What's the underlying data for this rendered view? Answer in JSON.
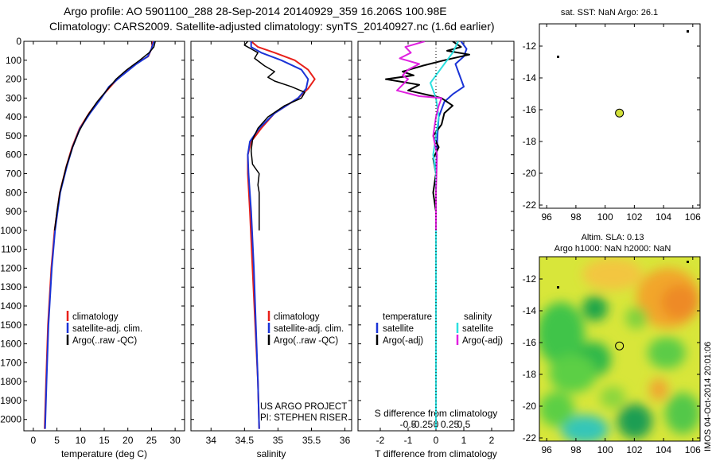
{
  "header": {
    "title_line1": "Argo profile: AO 5901100_288 28-Sep-2014 20140929_359 16.206S 100.98E",
    "title_line2": "Climatology: CARS2009. Satellite-adjusted climatology: synTS_20140927.nc (1.6d earlier)"
  },
  "colors": {
    "climatology": "#e8201a",
    "satellite": "#1a33d6",
    "argo": "#000000",
    "sal_satellite": "#2de0e0",
    "sal_argo": "#e020e0",
    "sst_bg": "#ffffff",
    "marker_fill": "#d2e03a"
  },
  "depth_axis": {
    "ticks": [
      "0",
      "100",
      "200",
      "300",
      "400",
      "500",
      "600",
      "700",
      "800",
      "900",
      "1000",
      "1100",
      "1200",
      "1300",
      "1400",
      "1500",
      "1600",
      "1700",
      "1800",
      "1900",
      "2000"
    ],
    "range": [
      0,
      2060
    ]
  },
  "chart_data": [
    {
      "type": "line",
      "panel": "temperature",
      "xlabel": "temperature (deg C)",
      "xlim": [
        -2,
        32
      ],
      "xticks": [
        "0",
        "5",
        "10",
        "15",
        "20",
        "25",
        "30"
      ],
      "ylim": [
        2060,
        0
      ],
      "legend": [
        "climatology",
        "satellite-adj. clim.",
        "Argo(..raw -QC)"
      ],
      "series": [
        {
          "name": "climatology",
          "depth": [
            0,
            40,
            80,
            120,
            180,
            240,
            300,
            380,
            460,
            560,
            660,
            800,
            1000,
            1200,
            1500,
            1800,
            2050
          ],
          "values": [
            25.3,
            25,
            24.3,
            21.5,
            18.5,
            16.3,
            14.2,
            11.8,
            9.8,
            8.2,
            7,
            5.6,
            4.5,
            3.8,
            3.1,
            2.7,
            2.4
          ]
        },
        {
          "name": "satellite-adj. clim.",
          "depth": [
            0,
            40,
            80,
            120,
            180,
            240,
            300,
            380,
            460,
            560,
            660,
            800,
            1000,
            1200,
            1500,
            1800,
            2050
          ],
          "values": [
            25.5,
            25,
            24.2,
            21.8,
            18.8,
            16,
            14.4,
            12,
            9.9,
            8.3,
            7.1,
            5.7,
            4.6,
            3.9,
            3.2,
            2.8,
            2.5
          ]
        },
        {
          "name": "Argo(..raw -QC)",
          "depth": [
            0,
            30,
            60,
            100,
            150,
            200,
            260,
            320,
            400,
            480,
            560,
            660,
            800,
            900,
            1000
          ],
          "values": [
            25.8,
            25.5,
            24.5,
            22.5,
            19.8,
            17.5,
            15.5,
            13.5,
            11.3,
            9.6,
            8.3,
            7,
            5.6,
            5,
            4.5
          ]
        }
      ]
    },
    {
      "type": "line",
      "panel": "salinity",
      "xlabel": "salinity",
      "xlim": [
        33.7,
        36.1
      ],
      "xticks": [
        "34",
        "34.5",
        "35",
        "35.5",
        "36"
      ],
      "ylim": [
        2060,
        0
      ],
      "legend": [
        "climatology",
        "satellite-adj. clim.",
        "Argo(..raw -QC)"
      ],
      "credit_line1": "US ARGO PROJECT",
      "credit_line2": "PI: STEPHEN RISER",
      "series": [
        {
          "name": "climatology",
          "depth": [
            0,
            30,
            60,
            100,
            150,
            200,
            250,
            300,
            380,
            460,
            530,
            600,
            700,
            900,
            1200,
            1500,
            1800,
            2050
          ],
          "values": [
            34.6,
            34.7,
            34.95,
            35.25,
            35.45,
            35.55,
            35.45,
            35.3,
            34.95,
            34.75,
            34.6,
            34.55,
            34.55,
            34.58,
            34.62,
            34.66,
            34.7,
            34.72
          ]
        },
        {
          "name": "satellite-adj. clim.",
          "depth": [
            0,
            30,
            60,
            100,
            150,
            200,
            250,
            300,
            380,
            460,
            530,
            600,
            700,
            900,
            1200,
            1500,
            1800,
            2050
          ],
          "values": [
            34.6,
            34.6,
            34.75,
            35.05,
            35.35,
            35.45,
            35.42,
            35.3,
            34.95,
            34.72,
            34.58,
            34.55,
            34.56,
            34.6,
            34.64,
            34.67,
            34.7,
            34.72
          ]
        },
        {
          "name": "Argo(..raw -QC)",
          "depth": [
            0,
            20,
            40,
            60,
            90,
            130,
            160,
            190,
            210,
            240,
            270,
            300,
            340,
            400,
            460,
            520,
            580,
            650,
            700,
            760,
            800,
            900,
            1000
          ],
          "values": [
            34.55,
            34.5,
            34.6,
            34.7,
            34.65,
            34.8,
            34.95,
            34.85,
            34.95,
            35.2,
            35.4,
            35.35,
            35.1,
            34.85,
            34.7,
            34.62,
            34.6,
            34.62,
            34.72,
            34.7,
            34.72,
            34.72,
            34.72
          ]
        }
      ]
    },
    {
      "type": "line",
      "panel": "differences",
      "xlabel": "T difference from climatology",
      "xlabel_top": "S difference from climatology",
      "xlim": [
        -2.8,
        2.8
      ],
      "xticks": [
        "-2",
        "-1",
        "0",
        "1",
        "2"
      ],
      "sticks": [
        "-0.5",
        "-0.25",
        "0",
        "0.25",
        "0.5"
      ],
      "ylim": [
        2060,
        0
      ],
      "legend_heads": [
        "temperature",
        "salinity"
      ],
      "legend": [
        "satellite",
        "Argo(-adj)",
        "satellite",
        "Argo(-adj)"
      ],
      "series": [
        {
          "name": "T satellite",
          "depth": [
            0,
            40,
            80,
            120,
            160,
            200,
            240,
            280,
            320,
            400,
            500,
            700,
            1000,
            1500,
            2050
          ],
          "values": [
            0.9,
            1.1,
            1.0,
            0.7,
            0.8,
            0.9,
            1.0,
            0.6,
            0.3,
            0.1,
            0.05,
            0,
            0,
            0,
            0
          ]
        },
        {
          "name": "T Argo(-adj)",
          "depth": [
            0,
            30,
            50,
            70,
            100,
            130,
            160,
            180,
            200,
            230,
            260,
            300,
            340,
            380,
            440,
            500,
            560,
            620,
            700,
            800,
            900,
            1000
          ],
          "values": [
            0.6,
            0.9,
            0.4,
            1.2,
            0.3,
            -0.5,
            -1.2,
            -0.8,
            -1.8,
            -0.6,
            -1.0,
            0.2,
            0.6,
            0.3,
            0.2,
            -0.1,
            0.1,
            -0.1,
            0,
            -0.1,
            0,
            0
          ]
        },
        {
          "name": "S satellite",
          "depth": [
            0,
            60,
            120,
            180,
            220,
            260,
            300,
            400,
            500,
            600,
            700,
            900,
            1200,
            1500,
            2050
          ],
          "values": [
            0.4,
            0.3,
            0.15,
            0,
            -0.1,
            -0.05,
            0,
            0.05,
            0,
            -0.05,
            0,
            0,
            0,
            0,
            0
          ]
        },
        {
          "name": "S Argo(-adj)",
          "depth": [
            0,
            30,
            60,
            90,
            120,
            150,
            180,
            200,
            230,
            260,
            290,
            300,
            340,
            400,
            500,
            600,
            800,
            1000
          ],
          "values": [
            -0.2,
            -0.55,
            -0.45,
            -0.65,
            -0.3,
            -0.5,
            -0.6,
            -0.5,
            -0.6,
            -0.7,
            -0.3,
            0.1,
            0.05,
            0,
            -0.05,
            0.02,
            0,
            0
          ]
        }
      ]
    },
    {
      "type": "scatter",
      "panel": "sst_map",
      "title": "sat. SST: NaN Argo: 26.1",
      "xlim": [
        95.5,
        106.5
      ],
      "ylim": [
        -22.2,
        -10.6
      ],
      "xticks": [
        "96",
        "98",
        "100",
        "102",
        "104",
        "106"
      ],
      "yticks": [
        "-12",
        "-14",
        "-16",
        "-18",
        "-20",
        "-22"
      ],
      "points": [
        {
          "x": 100.98,
          "y": -16.21
        }
      ]
    },
    {
      "type": "heatmap",
      "panel": "sla_map",
      "title_line1": "Altim. SLA: 0.13",
      "title_line2": "Argo h1000: NaN h2000: NaN",
      "xlim": [
        95.5,
        106.5
      ],
      "ylim": [
        -22.2,
        -10.6
      ],
      "xticks": [
        "96",
        "98",
        "100",
        "102",
        "104",
        "106"
      ],
      "yticks": [
        "-12",
        "-14",
        "-16",
        "-18",
        "-20",
        "-22"
      ],
      "points": [
        {
          "x": 100.98,
          "y": -16.21
        }
      ]
    }
  ],
  "footer": {
    "timestamp": "IMOS 04-Oct-2014 20:01:06"
  }
}
